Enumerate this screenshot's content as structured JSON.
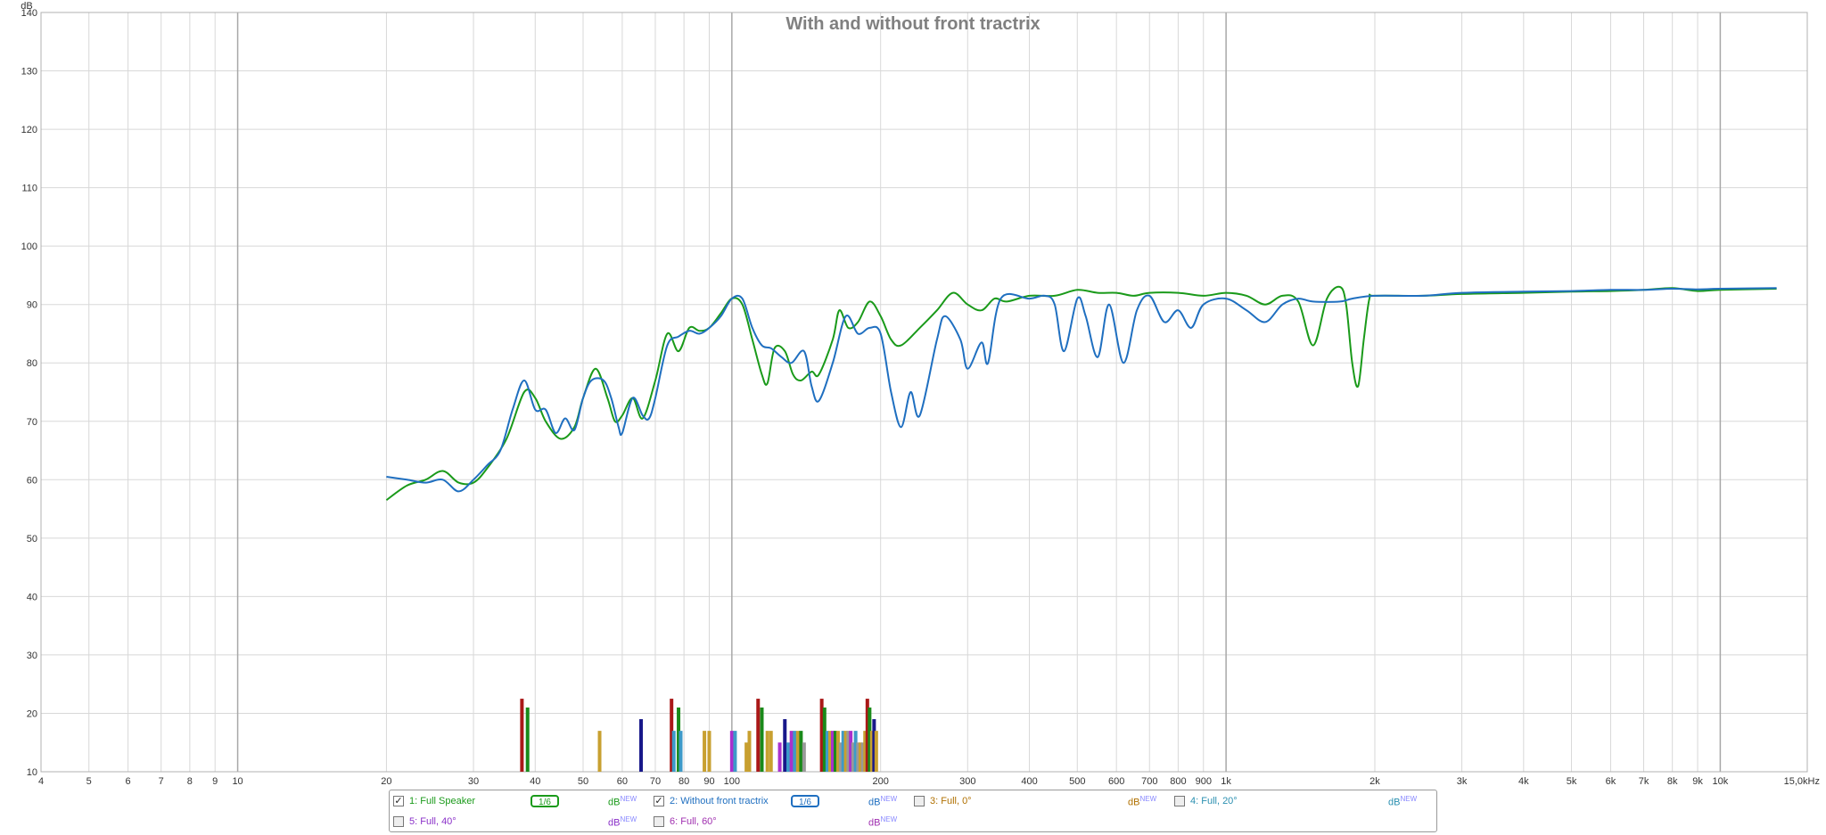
{
  "chart_data": {
    "type": "line",
    "title": "With and without front tractrix",
    "ylabel": "dB",
    "xscale": "log",
    "xlim": [
      4,
      15000
    ],
    "ylim": [
      10,
      140
    ],
    "yticks": [
      10,
      20,
      30,
      40,
      50,
      60,
      70,
      80,
      90,
      100,
      110,
      120,
      130,
      140
    ],
    "xticks": [
      {
        "v": 4,
        "l": "4"
      },
      {
        "v": 5,
        "l": "5"
      },
      {
        "v": 6,
        "l": "6"
      },
      {
        "v": 7,
        "l": "7"
      },
      {
        "v": 8,
        "l": "8"
      },
      {
        "v": 9,
        "l": "9"
      },
      {
        "v": 10,
        "l": "10"
      },
      {
        "v": 20,
        "l": "20"
      },
      {
        "v": 30,
        "l": "30"
      },
      {
        "v": 40,
        "l": "40"
      },
      {
        "v": 50,
        "l": "50"
      },
      {
        "v": 60,
        "l": "60"
      },
      {
        "v": 70,
        "l": "70"
      },
      {
        "v": 80,
        "l": "80"
      },
      {
        "v": 90,
        "l": "90"
      },
      {
        "v": 100,
        "l": "100"
      },
      {
        "v": 200,
        "l": "200"
      },
      {
        "v": 300,
        "l": "300"
      },
      {
        "v": 400,
        "l": "400"
      },
      {
        "v": 500,
        "l": "500"
      },
      {
        "v": 600,
        "l": "600"
      },
      {
        "v": 700,
        "l": "700"
      },
      {
        "v": 800,
        "l": "800"
      },
      {
        "v": 900,
        "l": "900"
      },
      {
        "v": 1000,
        "l": "1k"
      },
      {
        "v": 2000,
        "l": "2k"
      },
      {
        "v": 3000,
        "l": "3k"
      },
      {
        "v": 4000,
        "l": "4k"
      },
      {
        "v": 5000,
        "l": "5k"
      },
      {
        "v": 6000,
        "l": "6k"
      },
      {
        "v": 7000,
        "l": "7k"
      },
      {
        "v": 8000,
        "l": "8k"
      },
      {
        "v": 9000,
        "l": "9k"
      },
      {
        "v": 10000,
        "l": "10k"
      },
      {
        "v": 15000,
        "l": "15,0kHz"
      }
    ],
    "grid": true,
    "series": [
      {
        "name": "1: Full Speaker",
        "color": "#1a9a1a",
        "points": [
          [
            20,
            56.5
          ],
          [
            22,
            59
          ],
          [
            24,
            60
          ],
          [
            26,
            61.5
          ],
          [
            28,
            59.5
          ],
          [
            30,
            59.5
          ],
          [
            32,
            62
          ],
          [
            35,
            67
          ],
          [
            38,
            75
          ],
          [
            40,
            74
          ],
          [
            42,
            70
          ],
          [
            45,
            67
          ],
          [
            48,
            69
          ],
          [
            50,
            74
          ],
          [
            53,
            79
          ],
          [
            56,
            74
          ],
          [
            58,
            70
          ],
          [
            60,
            71
          ],
          [
            63,
            74
          ],
          [
            66,
            70.5
          ],
          [
            70,
            77
          ],
          [
            74,
            85
          ],
          [
            78,
            82
          ],
          [
            82,
            86
          ],
          [
            86,
            85.5
          ],
          [
            90,
            86
          ],
          [
            95,
            88.5
          ],
          [
            100,
            91
          ],
          [
            105,
            90
          ],
          [
            110,
            84
          ],
          [
            115,
            78
          ],
          [
            118,
            76.5
          ],
          [
            122,
            82.5
          ],
          [
            128,
            82
          ],
          [
            133,
            78
          ],
          [
            138,
            77
          ],
          [
            145,
            78.5
          ],
          [
            150,
            78
          ],
          [
            160,
            84
          ],
          [
            165,
            89
          ],
          [
            172,
            86
          ],
          [
            180,
            87
          ],
          [
            190,
            90.5
          ],
          [
            200,
            88
          ],
          [
            210,
            84
          ],
          [
            220,
            83
          ],
          [
            240,
            86
          ],
          [
            260,
            89
          ],
          [
            280,
            92
          ],
          [
            300,
            90
          ],
          [
            320,
            89
          ],
          [
            340,
            91
          ],
          [
            360,
            90.5
          ],
          [
            400,
            91.5
          ],
          [
            450,
            91.5
          ],
          [
            500,
            92.5
          ],
          [
            550,
            92
          ],
          [
            600,
            92
          ],
          [
            650,
            91.5
          ],
          [
            700,
            92
          ],
          [
            800,
            92
          ],
          [
            900,
            91.5
          ],
          [
            1000,
            92
          ],
          [
            1100,
            91.5
          ],
          [
            1200,
            90
          ],
          [
            1300,
            91.5
          ],
          [
            1400,
            90.5
          ],
          [
            1500,
            83
          ],
          [
            1600,
            91
          ],
          [
            1700,
            93
          ],
          [
            1750,
            90
          ],
          [
            1800,
            80
          ],
          [
            1850,
            76
          ],
          [
            1900,
            84
          ],
          [
            1950,
            91
          ],
          [
            2000,
            91.5
          ],
          [
            2500,
            91.5
          ],
          [
            3000,
            91.8
          ],
          [
            4000,
            92
          ],
          [
            5000,
            92.2
          ],
          [
            6000,
            92.3
          ],
          [
            7000,
            92.5
          ],
          [
            8000,
            92.8
          ],
          [
            9000,
            92.3
          ],
          [
            10000,
            92.5
          ],
          [
            13000,
            92.7
          ]
        ]
      },
      {
        "name": "2: Without front tractrix",
        "color": "#1f6fc0",
        "points": [
          [
            20,
            60.5
          ],
          [
            22,
            60
          ],
          [
            24,
            59.5
          ],
          [
            26,
            60
          ],
          [
            28,
            58
          ],
          [
            30,
            60
          ],
          [
            32,
            62.5
          ],
          [
            34,
            65
          ],
          [
            36,
            72
          ],
          [
            38,
            77
          ],
          [
            40,
            72
          ],
          [
            42,
            72
          ],
          [
            44,
            68
          ],
          [
            46,
            70.5
          ],
          [
            48,
            68.5
          ],
          [
            50,
            74
          ],
          [
            52,
            77
          ],
          [
            55,
            77
          ],
          [
            57,
            74
          ],
          [
            59,
            69
          ],
          [
            60,
            68
          ],
          [
            63,
            74
          ],
          [
            66,
            71
          ],
          [
            68,
            70.5
          ],
          [
            70,
            74
          ],
          [
            74,
            83
          ],
          [
            78,
            84.5
          ],
          [
            82,
            85.5
          ],
          [
            86,
            85
          ],
          [
            90,
            86
          ],
          [
            95,
            88
          ],
          [
            100,
            91
          ],
          [
            105,
            91
          ],
          [
            110,
            86
          ],
          [
            115,
            83
          ],
          [
            120,
            82.5
          ],
          [
            126,
            81
          ],
          [
            132,
            80
          ],
          [
            140,
            82
          ],
          [
            145,
            76
          ],
          [
            150,
            73.5
          ],
          [
            160,
            80
          ],
          [
            170,
            88
          ],
          [
            180,
            85
          ],
          [
            190,
            86
          ],
          [
            200,
            85
          ],
          [
            210,
            75
          ],
          [
            220,
            69
          ],
          [
            230,
            75
          ],
          [
            240,
            71
          ],
          [
            260,
            84
          ],
          [
            270,
            88
          ],
          [
            290,
            84
          ],
          [
            300,
            79
          ],
          [
            320,
            83.5
          ],
          [
            330,
            80
          ],
          [
            350,
            91
          ],
          [
            400,
            91
          ],
          [
            430,
            91.5
          ],
          [
            450,
            90
          ],
          [
            470,
            82
          ],
          [
            500,
            91
          ],
          [
            520,
            88
          ],
          [
            550,
            81
          ],
          [
            580,
            90
          ],
          [
            620,
            80
          ],
          [
            660,
            89
          ],
          [
            700,
            91.5
          ],
          [
            750,
            87
          ],
          [
            800,
            89
          ],
          [
            850,
            86
          ],
          [
            900,
            90
          ],
          [
            1000,
            91
          ],
          [
            1100,
            89
          ],
          [
            1200,
            87
          ],
          [
            1300,
            90
          ],
          [
            1400,
            91
          ],
          [
            1500,
            90.5
          ],
          [
            1700,
            90.5
          ],
          [
            1800,
            91
          ],
          [
            2000,
            91.5
          ],
          [
            2500,
            91.5
          ],
          [
            3000,
            92
          ],
          [
            4000,
            92.2
          ],
          [
            5000,
            92.3
          ],
          [
            6000,
            92.5
          ],
          [
            7000,
            92.5
          ],
          [
            8000,
            92.7
          ],
          [
            9000,
            92.6
          ],
          [
            10000,
            92.7
          ],
          [
            13000,
            92.8
          ]
        ]
      }
    ],
    "bars": [
      {
        "x": 37.6,
        "h": 22.5,
        "c": "#aa1818"
      },
      {
        "x": 38.6,
        "h": 21,
        "c": "#1a8a1a"
      },
      {
        "x": 54,
        "h": 17,
        "c": "#c8a030"
      },
      {
        "x": 65.5,
        "h": 19,
        "c": "#18188a"
      },
      {
        "x": 75.5,
        "h": 22.5,
        "c": "#aa1818"
      },
      {
        "x": 76.3,
        "h": 17,
        "c": "#3d9ac8"
      },
      {
        "x": 78,
        "h": 21,
        "c": "#1a8a1a"
      },
      {
        "x": 78.8,
        "h": 17,
        "c": "#3d9ac8"
      },
      {
        "x": 88,
        "h": 17,
        "c": "#c8a030"
      },
      {
        "x": 90,
        "h": 17,
        "c": "#c8a030"
      },
      {
        "x": 100,
        "h": 17,
        "c": "#aa30cc"
      },
      {
        "x": 101.5,
        "h": 17,
        "c": "#3d9ac8"
      },
      {
        "x": 107,
        "h": 15,
        "c": "#c8a030"
      },
      {
        "x": 108.5,
        "h": 17,
        "c": "#c8a030"
      },
      {
        "x": 113,
        "h": 22.5,
        "c": "#aa1818"
      },
      {
        "x": 115,
        "h": 21,
        "c": "#1a8a1a"
      },
      {
        "x": 118,
        "h": 17,
        "c": "#c8a030"
      },
      {
        "x": 120,
        "h": 17,
        "c": "#c8a030"
      },
      {
        "x": 125,
        "h": 15,
        "c": "#aa30cc"
      },
      {
        "x": 128,
        "h": 19,
        "c": "#18188a"
      },
      {
        "x": 130,
        "h": 15,
        "c": "#3d9ac8"
      },
      {
        "x": 132,
        "h": 17,
        "c": "#aa30cc"
      },
      {
        "x": 134,
        "h": 17,
        "c": "#3d9ac8"
      },
      {
        "x": 136,
        "h": 17,
        "c": "#c8a030"
      },
      {
        "x": 138,
        "h": 17,
        "c": "#1a8a1a"
      },
      {
        "x": 140,
        "h": 15,
        "c": "#999999"
      },
      {
        "x": 152,
        "h": 22.5,
        "c": "#aa1818"
      },
      {
        "x": 154,
        "h": 21,
        "c": "#1a8a1a"
      },
      {
        "x": 156,
        "h": 17,
        "c": "#3d9ac8"
      },
      {
        "x": 158,
        "h": 17,
        "c": "#c8a030"
      },
      {
        "x": 160,
        "h": 17,
        "c": "#aa30cc"
      },
      {
        "x": 162,
        "h": 17,
        "c": "#1a8a1a"
      },
      {
        "x": 164,
        "h": 17,
        "c": "#c8a030"
      },
      {
        "x": 166,
        "h": 15,
        "c": "#999999"
      },
      {
        "x": 168,
        "h": 17,
        "c": "#3d9ac8"
      },
      {
        "x": 170,
        "h": 17,
        "c": "#c8a030"
      },
      {
        "x": 172,
        "h": 17,
        "c": "#999999"
      },
      {
        "x": 174,
        "h": 17,
        "c": "#aa30cc"
      },
      {
        "x": 176,
        "h": 15,
        "c": "#999999"
      },
      {
        "x": 178,
        "h": 17,
        "c": "#3d9ac8"
      },
      {
        "x": 180,
        "h": 15,
        "c": "#999999"
      },
      {
        "x": 182,
        "h": 15,
        "c": "#c8a030"
      },
      {
        "x": 184,
        "h": 15,
        "c": "#999999"
      },
      {
        "x": 186,
        "h": 17,
        "c": "#c8a030"
      },
      {
        "x": 188,
        "h": 22.5,
        "c": "#aa1818"
      },
      {
        "x": 190,
        "h": 21,
        "c": "#1a8a1a"
      },
      {
        "x": 192,
        "h": 17,
        "c": "#c8a030"
      },
      {
        "x": 194,
        "h": 19,
        "c": "#18188a"
      },
      {
        "x": 196,
        "h": 17,
        "c": "#c8a030"
      }
    ]
  },
  "legend": {
    "items": [
      {
        "label": "1: Full Speaker",
        "color": "#1a9a1a",
        "checked": true,
        "smoothing": "1/6",
        "db": "dB",
        "db_sup": "NEW"
      },
      {
        "label": "2: Without front tractrix",
        "color": "#1f6fc0",
        "checked": true,
        "smoothing": "1/6",
        "db": "dB",
        "db_sup": "NEW"
      },
      {
        "label": "3: Full, 0°",
        "color": "#b07000",
        "checked": false,
        "db": "dB",
        "db_sup": "NEW"
      },
      {
        "label": "4: Full, 20°",
        "color": "#2a8fb0",
        "checked": false,
        "db": "dB",
        "db_sup": "NEW"
      },
      {
        "label": "5: Full, 40°",
        "color": "#8a30c8",
        "checked": false,
        "db": "dB",
        "db_sup": "NEW"
      },
      {
        "label": "6: Full, 60°",
        "color": "#a030b0",
        "checked": false,
        "db": "dB",
        "db_sup": "NEW"
      }
    ]
  }
}
